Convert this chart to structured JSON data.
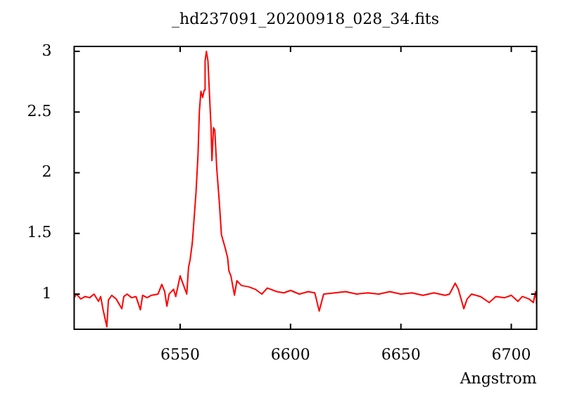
{
  "chart_data": {
    "type": "line",
    "title": "_hd237091_20200918_028_34.fits",
    "xlabel": "Angstrom",
    "xlim": [
      6502,
      6711.5
    ],
    "ylim": [
      0.71,
      3.04
    ],
    "xticks": [
      6550,
      6600,
      6650,
      6700
    ],
    "yticks": [
      1,
      {
        "value": 1.5,
        "label": "1.5"
      },
      2,
      {
        "value": 2.5,
        "label": "2.5"
      },
      3
    ],
    "series": [
      {
        "color": "#ff0000",
        "x": [
          6502,
          6503,
          6505,
          6507,
          6509,
          6511,
          6513,
          6514,
          6515,
          6516.8,
          6517.5,
          6519,
          6521,
          6523.6,
          6524.5,
          6526,
          6528,
          6530,
          6532,
          6533,
          6535,
          6537,
          6540,
          6541.7,
          6543,
          6544,
          6545,
          6547,
          6548,
          6550,
          6552,
          6553,
          6553.8,
          6554.5,
          6555.5,
          6556,
          6557.2,
          6558.1,
          6558.7,
          6559.4,
          6560.2,
          6560.9,
          6561.3,
          6561.9,
          6562.6,
          6563.2,
          6564,
          6564.4,
          6565.1,
          6565.7,
          6566.6,
          6567.7,
          6568.7,
          6570.4,
          6571.5,
          6572.1,
          6573,
          6574.6,
          6575.7,
          6577.8,
          6581,
          6584,
          6587,
          6589.5,
          6593.8,
          6597,
          6600,
          6604,
          6608,
          6611,
          6613,
          6615,
          6620,
          6625,
          6630,
          6635,
          6640,
          6645,
          6650,
          6655,
          6660,
          6665,
          6670,
          6672,
          6674.6,
          6676,
          6678.5,
          6680,
          6682,
          6686,
          6690,
          6693,
          6697,
          6700,
          6703,
          6705,
          6708,
          6710,
          6711,
          6711.5
        ],
        "values": [
          0.97,
          1.0,
          0.96,
          0.98,
          0.97,
          1.0,
          0.94,
          0.98,
          0.88,
          0.73,
          0.95,
          0.99,
          0.96,
          0.88,
          0.98,
          1.0,
          0.97,
          0.98,
          0.87,
          0.99,
          0.97,
          0.99,
          1.0,
          1.08,
          1.02,
          0.9,
          1.0,
          1.04,
          0.98,
          1.15,
          1.05,
          1.0,
          1.22,
          1.28,
          1.42,
          1.54,
          1.84,
          2.15,
          2.5,
          2.67,
          2.62,
          2.68,
          2.92,
          3.0,
          2.92,
          2.68,
          2.37,
          2.1,
          2.37,
          2.35,
          2.03,
          1.77,
          1.49,
          1.38,
          1.3,
          1.19,
          1.15,
          0.99,
          1.11,
          1.07,
          1.06,
          1.04,
          1.0,
          1.05,
          1.02,
          1.01,
          1.03,
          1.0,
          1.02,
          1.01,
          0.86,
          1.0,
          1.01,
          1.02,
          1.0,
          1.01,
          1.0,
          1.02,
          1.0,
          1.01,
          0.99,
          1.01,
          0.99,
          1.0,
          1.09,
          1.04,
          0.88,
          0.96,
          1.0,
          0.98,
          0.93,
          0.98,
          0.97,
          0.99,
          0.94,
          0.98,
          0.96,
          0.93,
          1.02,
          0.92
        ]
      }
    ]
  }
}
